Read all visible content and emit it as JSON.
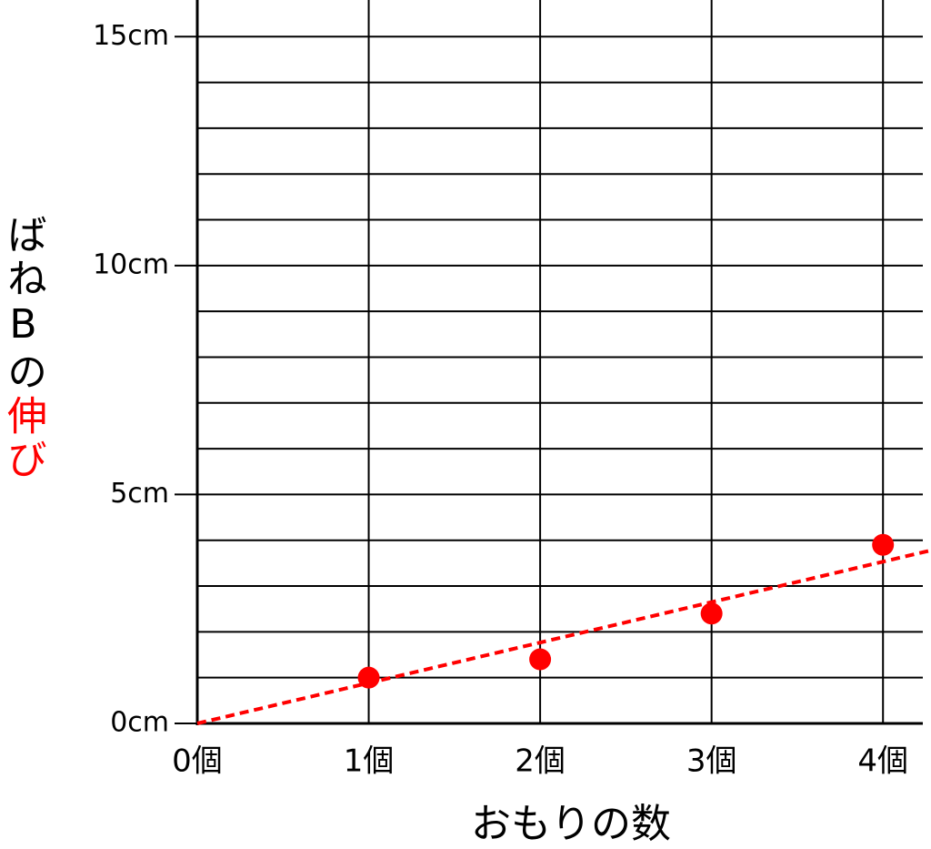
{
  "chart_data": {
    "type": "scatter",
    "x": [
      1,
      2,
      3,
      4
    ],
    "values": [
      1.0,
      1.4,
      2.4,
      3.9
    ],
    "color": "#ff0000",
    "trend": {
      "x": [
        0,
        4.28
      ],
      "values": [
        0,
        3.78
      ],
      "color": "#ff0000",
      "dashed": true
    },
    "xlim": [
      0,
      4.28
    ],
    "ylim": [
      0,
      15.8
    ],
    "xticks": [
      {
        "value": 0,
        "label": "0個"
      },
      {
        "value": 1,
        "label": "1個"
      },
      {
        "value": 2,
        "label": "2個"
      },
      {
        "value": 3,
        "label": "3個"
      },
      {
        "value": 4,
        "label": "4個"
      }
    ],
    "yticks": [
      {
        "value": 0,
        "label": "0cm"
      },
      {
        "value": 5,
        "label": "5cm"
      },
      {
        "value": 10,
        "label": "10cm"
      },
      {
        "value": 15,
        "label": "15cm"
      }
    ],
    "y_minor_ticks": [
      1,
      2,
      3,
      4,
      6,
      7,
      8,
      9,
      11,
      12,
      13,
      14
    ],
    "grid": true,
    "xlabel": "おもりの数",
    "ylabel_parts": [
      {
        "text": "ばねBの",
        "color": "#000000"
      },
      {
        "text": "伸び",
        "color": "#ff0000"
      }
    ]
  }
}
